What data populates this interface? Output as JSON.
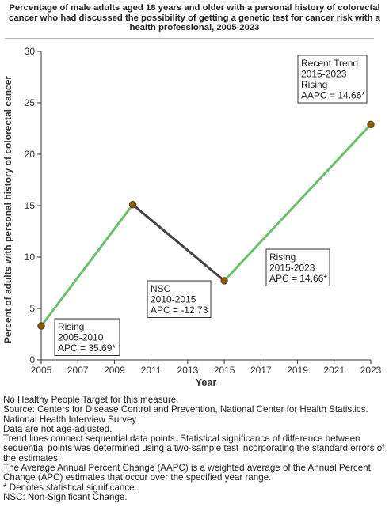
{
  "title": "Percentage of male adults aged 18 years and older with a personal history of colorectal cancer who had discussed the possibility of getting a genetic test for cancer risk with a health professional, 2005-2023",
  "chart_data": {
    "type": "line",
    "xlabel": "Year",
    "ylabel": "Percent of adults with personal history of colorectal cancer",
    "xlim": [
      2005,
      2023
    ],
    "ylim": [
      0,
      30
    ],
    "x_ticks": [
      2005,
      2007,
      2009,
      2011,
      2013,
      2015,
      2017,
      2019,
      2021,
      2023
    ],
    "y_ticks": [
      0,
      5,
      10,
      15,
      20,
      25,
      30
    ],
    "grid": false,
    "points": [
      {
        "x": 2005,
        "y": 3.3
      },
      {
        "x": 2010,
        "y": 15.1
      },
      {
        "x": 2015,
        "y": 7.7
      },
      {
        "x": 2023,
        "y": 22.9
      }
    ],
    "segments": [
      {
        "from": 2005,
        "to": 2010,
        "color": "#66c266",
        "label_lines": [
          "Rising",
          "2005-2010",
          "APC = 35.69*"
        ]
      },
      {
        "from": 2010,
        "to": 2015,
        "color": "#444444",
        "label_lines": [
          "NSC",
          "2010-2015",
          "APC = -12.73"
        ]
      },
      {
        "from": 2015,
        "to": 2023,
        "color": "#66c266",
        "label_lines": [
          "Rising",
          "2015-2023",
          "APC = 14.66*"
        ]
      }
    ],
    "recent_trend": {
      "label_lines": [
        "Recent Trend",
        "2015-2023",
        "Rising",
        "AAPC = 14.66*"
      ]
    },
    "marker_color": "#8b5a0a",
    "marker_stroke": "#5a3a05"
  },
  "notes": [
    "No Healthy People Target for this measure.",
    "Source: Centers for Disease Control and Prevention, National Center for Health Statistics. National Health Interview Survey.",
    "Data are not age-adjusted.",
    "Trend lines connect sequential data points. Statistical significance of difference between sequential points was determined using a two-sample test incorporating the standard errors of the estimates.",
    "The Average Annual Percent Change (AAPC) is a weighted average of the Annual Percent Change (APC) estimates that occur over the specified year range.",
    "* Denotes statistical significance.",
    "NSC: Non-Significant Change."
  ]
}
